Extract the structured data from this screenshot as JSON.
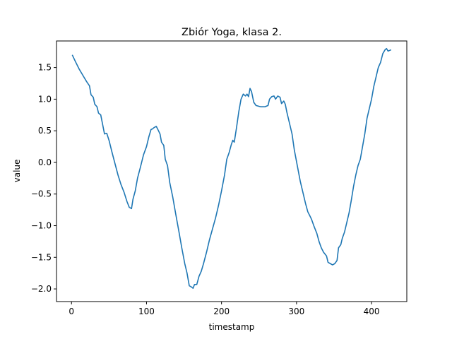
{
  "chart_data": {
    "type": "line",
    "title": "Zbiór Yoga, klasa 2.",
    "xlabel": "timestamp",
    "ylabel": "value",
    "xlim": [
      -20,
      447
    ],
    "ylim": [
      -2.2,
      1.92
    ],
    "x_ticks": [
      0,
      100,
      200,
      300,
      400
    ],
    "y_ticks": [
      -2.0,
      -1.5,
      -1.0,
      -0.5,
      0.0,
      0.5,
      1.0,
      1.5
    ],
    "x_tick_labels": [
      "0",
      "100",
      "200",
      "300",
      "400"
    ],
    "y_tick_labels": [
      "−2.0",
      "−1.5",
      "−1.0",
      "−0.5",
      "0.0",
      "0.5",
      "1.0",
      "1.5"
    ],
    "grid": false,
    "line_color": "#1f77b4",
    "series": [
      {
        "points": [
          [
            1,
            1.7
          ],
          [
            5,
            1.6
          ],
          [
            10,
            1.48
          ],
          [
            15,
            1.38
          ],
          [
            20,
            1.28
          ],
          [
            24,
            1.21
          ],
          [
            26,
            1.07
          ],
          [
            29,
            1.03
          ],
          [
            31,
            0.92
          ],
          [
            34,
            0.88
          ],
          [
            36,
            0.78
          ],
          [
            39,
            0.75
          ],
          [
            42,
            0.57
          ],
          [
            44,
            0.45
          ],
          [
            47,
            0.46
          ],
          [
            50,
            0.35
          ],
          [
            54,
            0.16
          ],
          [
            58,
            -0.02
          ],
          [
            62,
            -0.2
          ],
          [
            66,
            -0.35
          ],
          [
            70,
            -0.47
          ],
          [
            74,
            -0.62
          ],
          [
            77,
            -0.71
          ],
          [
            80,
            -0.73
          ],
          [
            82,
            -0.58
          ],
          [
            85,
            -0.45
          ],
          [
            88,
            -0.25
          ],
          [
            92,
            -0.07
          ],
          [
            96,
            0.12
          ],
          [
            100,
            0.25
          ],
          [
            103,
            0.4
          ],
          [
            106,
            0.52
          ],
          [
            108,
            0.53
          ],
          [
            110,
            0.55
          ],
          [
            113,
            0.57
          ],
          [
            116,
            0.5
          ],
          [
            118,
            0.45
          ],
          [
            120,
            0.32
          ],
          [
            123,
            0.27
          ],
          [
            125,
            0.05
          ],
          [
            128,
            -0.05
          ],
          [
            131,
            -0.32
          ],
          [
            135,
            -0.55
          ],
          [
            139,
            -0.82
          ],
          [
            143,
            -1.08
          ],
          [
            147,
            -1.35
          ],
          [
            151,
            -1.6
          ],
          [
            154,
            -1.75
          ],
          [
            157,
            -1.95
          ],
          [
            160,
            -1.97
          ],
          [
            162,
            -1.99
          ],
          [
            164,
            -1.93
          ],
          [
            167,
            -1.93
          ],
          [
            170,
            -1.8
          ],
          [
            173,
            -1.72
          ],
          [
            176,
            -1.6
          ],
          [
            180,
            -1.42
          ],
          [
            184,
            -1.22
          ],
          [
            188,
            -1.05
          ],
          [
            192,
            -0.88
          ],
          [
            196,
            -0.68
          ],
          [
            200,
            -0.45
          ],
          [
            204,
            -0.2
          ],
          [
            207,
            0.05
          ],
          [
            210,
            0.15
          ],
          [
            213,
            0.28
          ],
          [
            215,
            0.35
          ],
          [
            217,
            0.32
          ],
          [
            220,
            0.55
          ],
          [
            223,
            0.8
          ],
          [
            226,
            1.0
          ],
          [
            229,
            1.08
          ],
          [
            232,
            1.05
          ],
          [
            234,
            1.08
          ],
          [
            236,
            1.04
          ],
          [
            238,
            1.17
          ],
          [
            240,
            1.12
          ],
          [
            243,
            0.95
          ],
          [
            246,
            0.9
          ],
          [
            252,
            0.88
          ],
          [
            258,
            0.88
          ],
          [
            262,
            0.9
          ],
          [
            264,
            1.0
          ],
          [
            267,
            1.04
          ],
          [
            270,
            1.05
          ],
          [
            272,
            1.0
          ],
          [
            275,
            1.05
          ],
          [
            278,
            1.03
          ],
          [
            280,
            0.93
          ],
          [
            283,
            0.97
          ],
          [
            285,
            0.92
          ],
          [
            287,
            0.8
          ],
          [
            290,
            0.65
          ],
          [
            294,
            0.45
          ],
          [
            297,
            0.2
          ],
          [
            301,
            -0.05
          ],
          [
            305,
            -0.3
          ],
          [
            309,
            -0.5
          ],
          [
            312,
            -0.65
          ],
          [
            315,
            -0.78
          ],
          [
            318,
            -0.85
          ],
          [
            320,
            -0.9
          ],
          [
            323,
            -1.0
          ],
          [
            327,
            -1.12
          ],
          [
            330,
            -1.25
          ],
          [
            333,
            -1.35
          ],
          [
            336,
            -1.42
          ],
          [
            340,
            -1.48
          ],
          [
            342,
            -1.58
          ],
          [
            345,
            -1.6
          ],
          [
            348,
            -1.62
          ],
          [
            351,
            -1.6
          ],
          [
            354,
            -1.55
          ],
          [
            356,
            -1.35
          ],
          [
            359,
            -1.3
          ],
          [
            361,
            -1.2
          ],
          [
            364,
            -1.1
          ],
          [
            367,
            -0.95
          ],
          [
            370,
            -0.8
          ],
          [
            373,
            -0.6
          ],
          [
            376,
            -0.38
          ],
          [
            379,
            -0.2
          ],
          [
            382,
            -0.05
          ],
          [
            385,
            0.05
          ],
          [
            388,
            0.25
          ],
          [
            391,
            0.45
          ],
          [
            394,
            0.7
          ],
          [
            397,
            0.85
          ],
          [
            400,
            1.0
          ],
          [
            403,
            1.2
          ],
          [
            406,
            1.35
          ],
          [
            409,
            1.5
          ],
          [
            412,
            1.58
          ],
          [
            415,
            1.72
          ],
          [
            418,
            1.78
          ],
          [
            420,
            1.8
          ],
          [
            422,
            1.76
          ],
          [
            424,
            1.77
          ],
          [
            426,
            1.78
          ]
        ]
      }
    ]
  }
}
